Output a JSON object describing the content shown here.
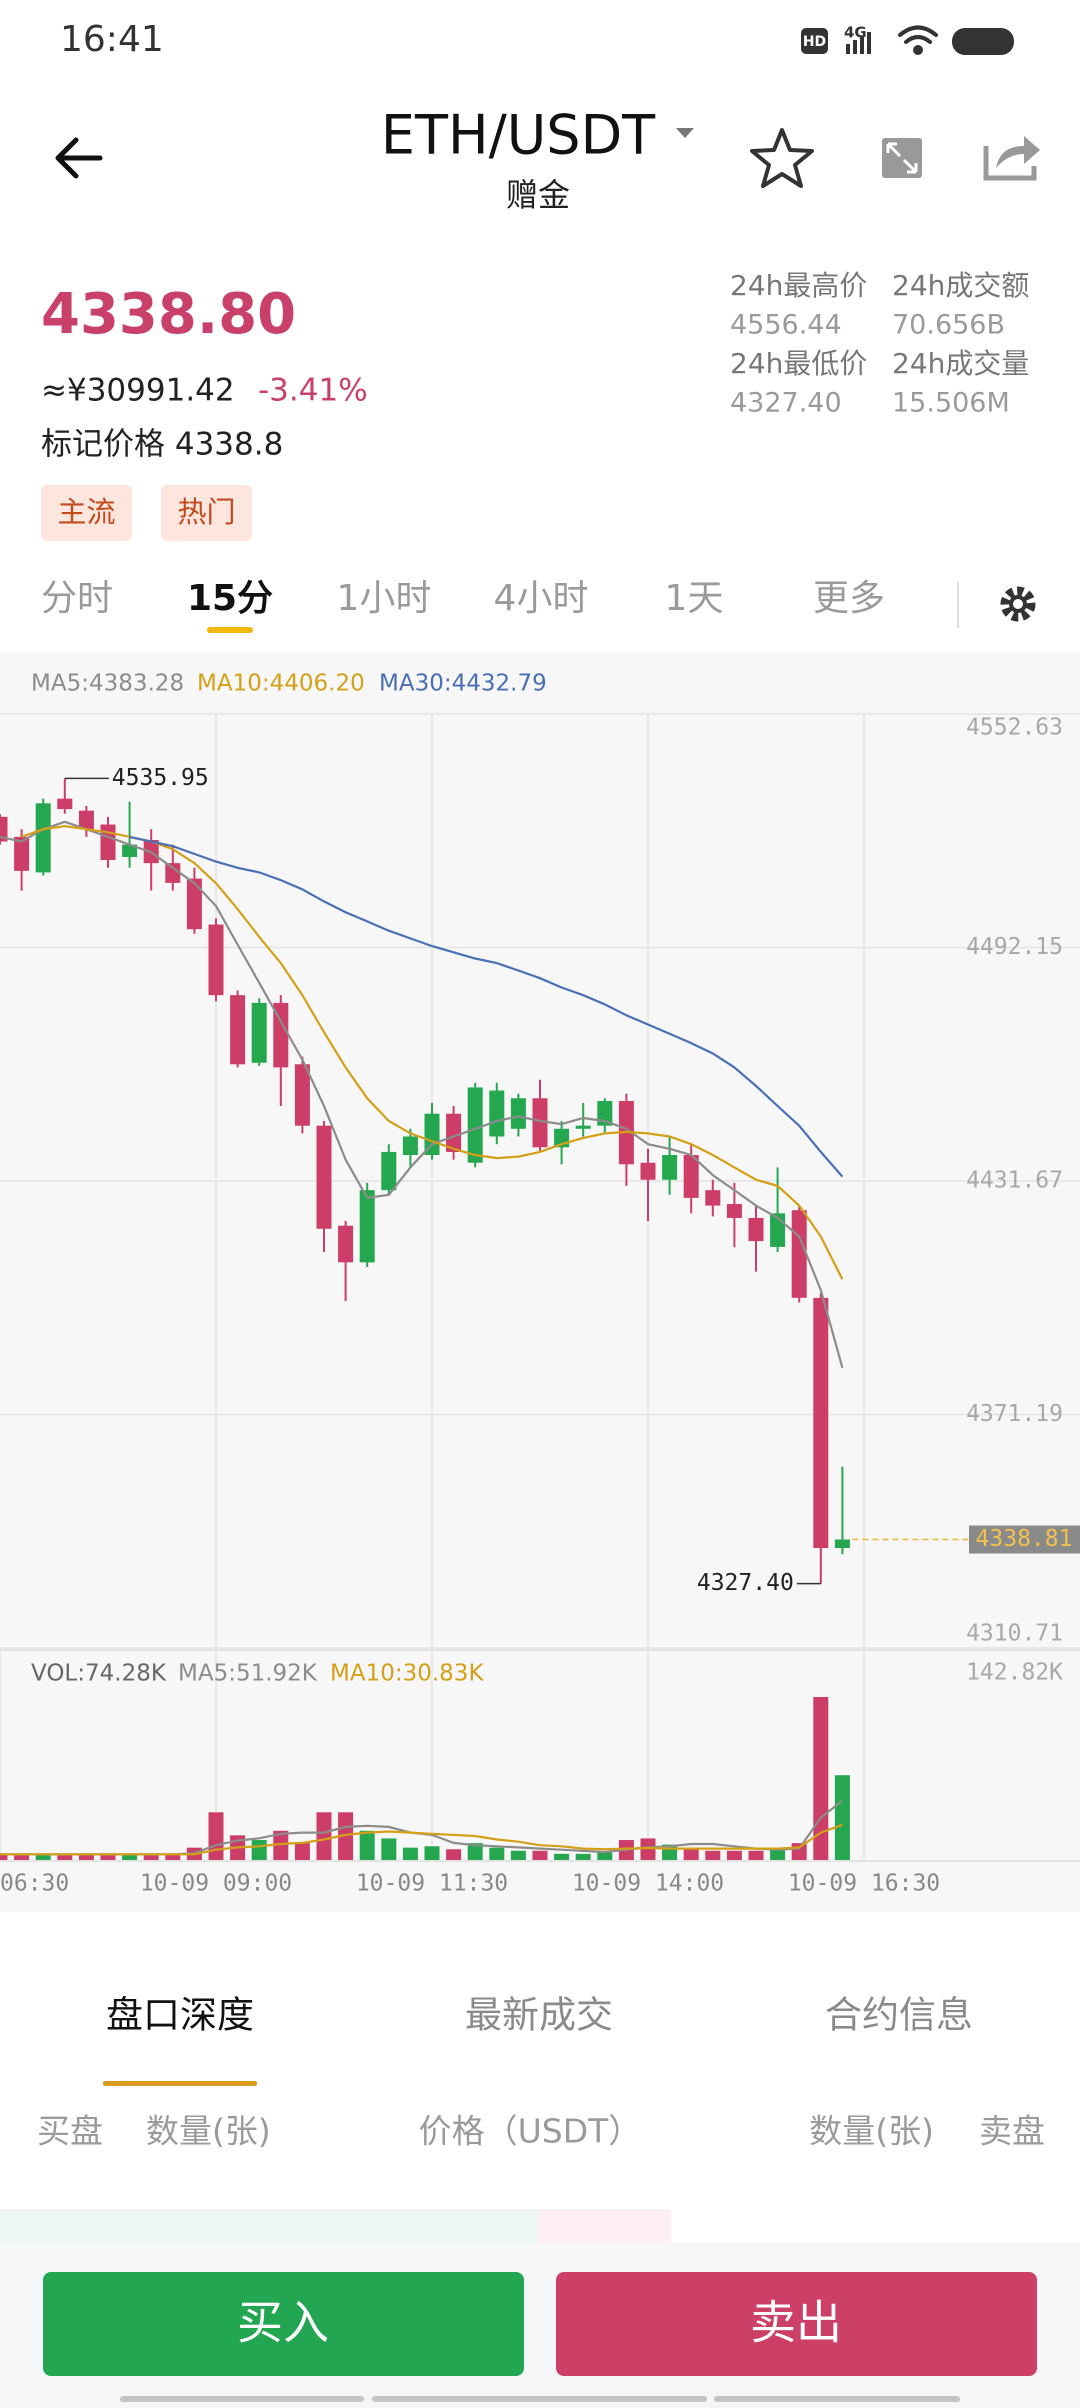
{
  "status_bar": {
    "time": "16:41",
    "hd": "HD",
    "network": "4G"
  },
  "header": {
    "title": "ETH/USDT",
    "subtitle": "赠金"
  },
  "ticker": {
    "price": "4338.80",
    "cny": "≈¥30991.42",
    "change": "-3.41%",
    "mark_price": "标记价格 4338.8",
    "tags": [
      "主流",
      "热门"
    ]
  },
  "stats": [
    {
      "label": "24h最高价",
      "value": "4556.44"
    },
    {
      "label": "24h成交额",
      "value": "70.656B"
    },
    {
      "label": "24h最低价",
      "value": "4327.40"
    },
    {
      "label": "24h成交量",
      "value": "15.506M"
    }
  ],
  "intervals": {
    "items": [
      "分时",
      "15分",
      "1小时",
      "4小时",
      "1天",
      "更多"
    ],
    "active": 1
  },
  "chart_data": [
    {
      "type": "candlestick",
      "x": [
        6.5,
        6.75,
        7,
        7.25,
        7.5,
        7.75,
        8,
        8.25,
        8.5,
        8.75,
        9,
        9.25,
        9.5,
        9.75,
        10,
        10.25,
        10.5,
        10.75,
        11,
        11.25,
        11.5,
        11.75,
        12,
        12.25,
        12.5,
        12.75,
        13,
        13.25,
        13.5,
        13.75,
        14,
        14.25,
        14.5,
        14.75,
        15,
        15.25,
        15.5,
        15.75,
        16,
        16.25
      ],
      "open": [
        4526.0,
        4520.8,
        4511.6,
        4530.7,
        4527.6,
        4524.0,
        4515.6,
        4520.0,
        4514.0,
        4510.0,
        4498.1,
        4479.8,
        4462.3,
        4477.8,
        4461.9,
        4446.0,
        4420.1,
        4410.6,
        4429.3,
        4438.4,
        4438.4,
        4449.1,
        4436.4,
        4443.2,
        4445.2,
        4453.1,
        4440.4,
        4445.2,
        4446.0,
        4452.4,
        4436.4,
        4432.0,
        4438.4,
        4429.3,
        4425.7,
        4422.1,
        4414.6,
        4424.1,
        4401.4,
        4336.6
      ],
      "high": [
        4526.7,
        4522.8,
        4530.7,
        4535.95,
        4528.8,
        4526.0,
        4529.9,
        4522.8,
        4518.8,
        4512.8,
        4499.7,
        4481.0,
        4479.0,
        4479.8,
        4463.9,
        4447.2,
        4421.3,
        4431.2,
        4441.2,
        4445.2,
        4451.9,
        4451.1,
        4457.1,
        4457.1,
        4454.3,
        4457.9,
        4447.2,
        4451.9,
        4453.1,
        4454.3,
        4440.0,
        4443.2,
        4441.2,
        4432.0,
        4431.2,
        4425.3,
        4435.2,
        4425.3,
        4402.6,
        4357.7
      ],
      "low": [
        4518.8,
        4506.9,
        4510.8,
        4526.8,
        4520.8,
        4512.8,
        4512.8,
        4506.9,
        4506.9,
        4495.7,
        4478.2,
        4461.1,
        4461.5,
        4451.1,
        4444.0,
        4413.3,
        4400.6,
        4409.4,
        4428.1,
        4435.2,
        4437.2,
        4437.2,
        4435.2,
        4441.2,
        4443.2,
        4439.2,
        4436.0,
        4443.2,
        4444.0,
        4430.4,
        4421.3,
        4428.1,
        4423.3,
        4422.5,
        4414.5,
        4408.2,
        4413.3,
        4400.2,
        4327.4,
        4335.0
      ],
      "close": [
        4519.6,
        4512.0,
        4529.5,
        4528.0,
        4522.8,
        4514.8,
        4518.8,
        4514.0,
        4508.9,
        4496.9,
        4479.8,
        4461.9,
        4477.8,
        4461.1,
        4446.0,
        4419.3,
        4410.6,
        4429.3,
        4439.2,
        4443.2,
        4449.1,
        4439.2,
        4455.9,
        4455.1,
        4453.1,
        4440.4,
        4445.2,
        4446.0,
        4452.4,
        4436.0,
        4432.0,
        4438.4,
        4427.3,
        4425.3,
        4422.1,
        4416.1,
        4423.3,
        4401.4,
        4336.6,
        4338.81
      ],
      "up_color": "#25a750",
      "down_color": "#cc3d67",
      "series": [
        {
          "name": "MA5:4383.28",
          "color": "#8c8c8c",
          "values": [
            4520.8,
            4519.6,
            4522.8,
            4524.7,
            4522.8,
            4520.8,
            4518.8,
            4516.8,
            4512.8,
            4508.8,
            4502.9,
            4492.9,
            4483.0,
            4473.0,
            4463.1,
            4451.1,
            4437.2,
            4427.3,
            4428.1,
            4435.2,
            4441.2,
            4443.2,
            4445.2,
            4447.2,
            4448.4,
            4447.2,
            4446.4,
            4448.0,
            4447.2,
            4445.2,
            4441.2,
            4440.0,
            4438.4,
            4433.2,
            4429.3,
            4425.3,
            4422.1,
            4417.3,
            4403.4,
            4383.28
          ]
        },
        {
          "name": "MA10:4406.20",
          "color": "#d4a017",
          "values": [
            null,
            4520.8,
            4522.8,
            4523.6,
            4522.8,
            4522.0,
            4520.8,
            4519.6,
            4517.6,
            4514.0,
            4508.8,
            4502.1,
            4494.9,
            4488.1,
            4479.8,
            4470.2,
            4461.1,
            4453.1,
            4447.2,
            4444.0,
            4442.0,
            4440.0,
            4438.4,
            4437.6,
            4438.0,
            4439.2,
            4441.2,
            4442.8,
            4444.0,
            4444.4,
            4444.0,
            4443.2,
            4441.2,
            4438.4,
            4435.2,
            4432.0,
            4430.4,
            4425.3,
            4417.3,
            4406.2
          ]
        },
        {
          "name": "MA30:4432.79",
          "color": "#4a6fb5",
          "values": [
            null,
            null,
            null,
            null,
            null,
            null,
            4520.8,
            4519.6,
            4518.4,
            4516.4,
            4514.4,
            4512.8,
            4511.6,
            4509.6,
            4507.2,
            4504.1,
            4501.3,
            4498.9,
            4496.5,
            4494.5,
            4492.5,
            4490.9,
            4489.3,
            4488.1,
            4486.2,
            4484.2,
            4481.8,
            4479.8,
            4477.4,
            4474.6,
            4472.2,
            4469.8,
            4467.4,
            4464.7,
            4461.1,
            4456.3,
            4451.1,
            4446.0,
            4439.2,
            4432.79
          ]
        }
      ],
      "xlim": [
        6.5,
        19
      ],
      "xticks": [
        9,
        11.5,
        14,
        16.5
      ],
      "ylim": [
        4310.71,
        4552.63
      ],
      "yticks": [
        4552.63,
        4492.15,
        4431.67,
        4371.19,
        4310.71
      ],
      "grid": true,
      "max_annotation": 4535.95,
      "min_annotation": {
        "value": 4327.4,
        "label": "4327.40"
      },
      "last_price": 4338.81
    },
    {
      "type": "bar",
      "x": [
        6.5,
        6.75,
        7,
        7.25,
        7.5,
        7.75,
        8,
        8.25,
        8.5,
        8.75,
        9,
        9.25,
        9.5,
        9.75,
        10,
        10.25,
        10.5,
        10.75,
        11,
        11.25,
        11.5,
        11.75,
        12,
        12.25,
        12.5,
        12.75,
        13,
        13.25,
        13.5,
        13.75,
        14,
        14.25,
        14.5,
        14.75,
        15,
        15.25,
        15.5,
        15.75,
        16,
        16.25
      ],
      "up_color": "#25a750",
      "down_color": "#cc3d67",
      "series": [
        {
          "name": "VOL:74.28K",
          "type": "bar",
          "color": "#666666",
          "values": [
            5,
            4,
            5,
            4,
            5,
            4,
            5,
            4,
            5,
            10.8,
            41.8,
            21.6,
            17.5,
            25.6,
            14.8,
            41.8,
            41.8,
            25.6,
            18.9,
            10.8,
            12,
            9.4,
            14.8,
            10.8,
            8.1,
            8.1,
            5.4,
            5.4,
            6.7,
            17.5,
            18.9,
            13.5,
            10.8,
            8.1,
            8.1,
            8.1,
            10.8,
            14.8,
            142.82,
            74.28
          ]
        },
        {
          "name": "MA5:51.92K",
          "type": "line",
          "color": "#8c8c8c",
          "values": [
            5,
            5,
            5,
            5,
            5,
            5,
            5,
            5,
            5,
            6,
            13,
            17,
            19,
            23,
            24,
            24,
            29,
            30,
            29,
            24,
            22,
            15,
            13,
            12,
            11,
            10,
            9,
            8,
            7,
            9,
            11,
            12,
            14,
            14,
            12,
            10,
            9,
            10,
            37,
            51.92
          ]
        },
        {
          "name": "MA10:30.83K",
          "type": "line",
          "color": "#d4a017",
          "values": [
            5,
            5,
            5,
            5,
            5,
            5,
            5,
            5,
            5,
            5,
            9,
            11,
            12,
            14,
            15,
            18,
            22,
            24,
            25,
            24,
            23,
            22,
            21,
            18,
            16,
            13,
            12,
            10,
            9.5,
            10,
            10.5,
            10,
            10,
            10,
            10,
            10,
            10,
            11,
            24,
            30.83
          ]
        }
      ],
      "xlim": [
        6.5,
        19
      ],
      "xticks": [
        {
          "value": 6.5,
          "label": "06:30"
        },
        {
          "value": 9,
          "label": "10-09 09:00"
        },
        {
          "value": 11.5,
          "label": "10-09 11:30"
        },
        {
          "value": 14,
          "label": "10-09 14:00"
        },
        {
          "value": 16.5,
          "label": "10-09 16:30"
        }
      ],
      "ylim": [
        0,
        142.82
      ],
      "yticks": [
        {
          "value": 142.82,
          "label": "142.82K"
        }
      ]
    }
  ],
  "order_book": {
    "tabs": [
      "盘口深度",
      "最新成交",
      "合约信息"
    ],
    "active": 0,
    "columns": [
      "买盘",
      "数量(张)",
      "价格（USDT）",
      "数量(张)",
      "卖盘"
    ]
  },
  "actions": {
    "buy": "买入",
    "sell": "卖出"
  }
}
